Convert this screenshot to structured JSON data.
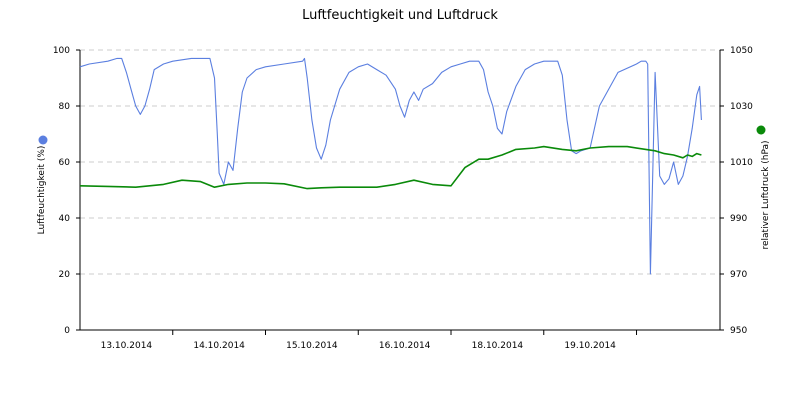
{
  "chart_data": {
    "type": "line",
    "title": "Luftfeuchtigkeit und Luftdruck",
    "x_tick_labels": [
      "13.10.2014",
      "14.10.2014",
      "15.10.2014",
      "16.10.2014",
      "18.10.2014",
      "19.10.2014"
    ],
    "y_left": {
      "label": "Luftfeuchtigkeit (%)",
      "range": [
        0,
        100
      ],
      "ticks": [
        0,
        20,
        40,
        60,
        80,
        100
      ]
    },
    "y_right": {
      "label": "relativer Luftdruck (hPa)",
      "range": [
        950,
        1050
      ],
      "ticks": [
        950,
        970,
        990,
        1010,
        1030,
        1050
      ]
    },
    "grid": true,
    "legend": "axis-side markers",
    "colors": {
      "humidity": "#5b7fe0",
      "pressure": "#0a8a0a"
    },
    "x_range": [
      0,
      6.9
    ],
    "series": [
      {
        "key": "humidity",
        "axis": "left",
        "x": [
          0,
          0.1,
          0.3,
          0.4,
          0.45,
          0.5,
          0.55,
          0.6,
          0.65,
          0.7,
          0.75,
          0.8,
          0.9,
          1.0,
          1.2,
          1.4,
          1.45,
          1.48,
          1.5,
          1.55,
          1.6,
          1.65,
          1.7,
          1.75,
          1.8,
          1.9,
          2.0,
          2.2,
          2.4,
          2.42,
          2.45,
          2.5,
          2.55,
          2.6,
          2.65,
          2.7,
          2.8,
          2.9,
          3.0,
          3.1,
          3.2,
          3.3,
          3.4,
          3.45,
          3.5,
          3.55,
          3.6,
          3.65,
          3.7,
          3.8,
          3.9,
          4.0,
          4.1,
          4.2,
          4.3,
          4.35,
          4.4,
          4.45,
          4.5,
          4.55,
          4.6,
          4.7,
          4.8,
          4.9,
          5.0,
          5.1,
          5.15,
          5.2,
          5.25,
          5.3,
          5.35,
          5.4,
          5.5,
          5.6,
          5.8,
          6.0,
          6.05,
          6.08,
          6.1,
          6.12,
          6.15,
          6.2,
          6.25,
          6.3,
          6.35,
          6.4,
          6.45,
          6.5,
          6.55,
          6.6,
          6.65,
          6.68,
          6.7
        ],
        "values": [
          94,
          95,
          96,
          97,
          97,
          92,
          86,
          80,
          77,
          80,
          86,
          93,
          95,
          96,
          97,
          97,
          90,
          70,
          56,
          52,
          60,
          57,
          72,
          85,
          90,
          93,
          94,
          95,
          96,
          97,
          90,
          75,
          65,
          61,
          66,
          75,
          86,
          92,
          94,
          95,
          93,
          91,
          86,
          80,
          76,
          82,
          85,
          82,
          86,
          88,
          92,
          94,
          95,
          96,
          96,
          93,
          85,
          80,
          72,
          70,
          78,
          87,
          93,
          95,
          96,
          96,
          96,
          91,
          75,
          64,
          63,
          64,
          65,
          80,
          92,
          95,
          96,
          96,
          96,
          95,
          20,
          92,
          55,
          52,
          54,
          60,
          52,
          55,
          62,
          72,
          84,
          87,
          75
        ]
      },
      {
        "key": "pressure",
        "axis": "right",
        "x": [
          0,
          0.3,
          0.6,
          0.9,
          1.1,
          1.3,
          1.45,
          1.6,
          1.8,
          2.0,
          2.2,
          2.45,
          2.6,
          2.8,
          3.0,
          3.2,
          3.4,
          3.6,
          3.8,
          4.0,
          4.15,
          4.3,
          4.4,
          4.55,
          4.7,
          4.9,
          5.0,
          5.2,
          5.35,
          5.5,
          5.7,
          5.9,
          6.1,
          6.2,
          6.3,
          6.4,
          6.5,
          6.55,
          6.6,
          6.65,
          6.7
        ],
        "values": [
          1001.5,
          1001.3,
          1001,
          1002,
          1003.5,
          1003,
          1001,
          1002,
          1002.5,
          1002.5,
          1002.2,
          1000.5,
          1000.8,
          1001,
          1001,
          1001,
          1002,
          1003.5,
          1002,
          1001.5,
          1008,
          1011,
          1011,
          1012.5,
          1014.5,
          1015,
          1015.5,
          1014.5,
          1014,
          1015,
          1015.5,
          1015.5,
          1014.5,
          1014,
          1013,
          1012.5,
          1011.5,
          1012.5,
          1012,
          1013,
          1012.5
        ]
      }
    ]
  }
}
